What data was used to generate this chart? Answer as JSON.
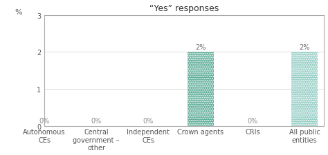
{
  "title": "“Yes” responses",
  "ylabel": "%",
  "categories": [
    "Autonomous\nCEs",
    "Central\ngovernment –\nother",
    "Independent\nCEs",
    "Crown agents",
    "CRIs",
    "All public\nentities"
  ],
  "values": [
    0,
    0,
    0,
    2,
    0,
    2
  ],
  "bar_colors": [
    "#5ba892",
    "#5ba892",
    "#5ba892",
    "#5ba892",
    "#5ba892",
    "#96cec5"
  ],
  "bar_label_colors": [
    "#8c8c8c",
    "#8c8c8c",
    "#8c8c8c",
    "#6a6a6a",
    "#8c8c8c",
    "#6a6a6a"
  ],
  "bar_labels": [
    "0%",
    "0%",
    "0%",
    "2%",
    "0%",
    "2%"
  ],
  "ylim": [
    0,
    3
  ],
  "yticks": [
    0,
    1,
    2,
    3
  ],
  "background_color": "#ffffff",
  "title_fontsize": 9,
  "axis_fontsize": 7,
  "label_fontsize": 7,
  "bar_width": 0.5
}
